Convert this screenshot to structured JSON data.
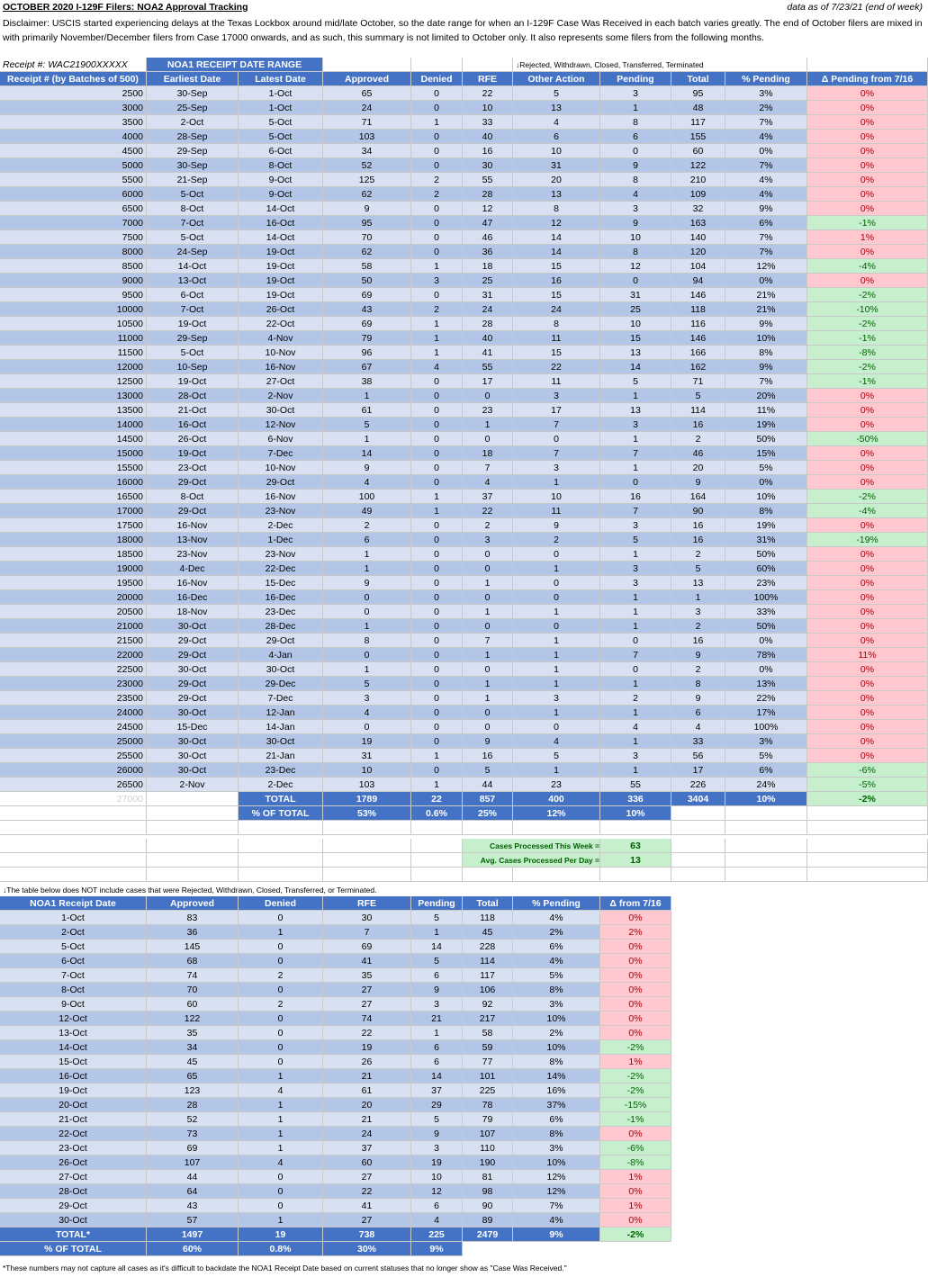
{
  "title": "OCTOBER 2020 I-129F Filers: NOA2 Approval Tracking",
  "data_as_of": "data as of 7/23/21 (end of week)",
  "disclaimer": "Disclaimer: USCIS started experiencing delays at the Texas Lockbox around mid/late October, so the date range for when an I-129F Case Was Received in each batch varies greatly. The end of October filers are mixed in with primarily November/December filers from Case 17000 onwards, and as such, this summary is not limited to October only. It also represents some filers from the following months.",
  "receipt_label": "Receipt #: WAC21900XXXXX",
  "noa1_range_label": "NOA1 RECEIPT DATE RANGE",
  "rejected_note": "↓Rejected, Withdrawn, Closed, Transferred, Terminated",
  "table1": {
    "headers": [
      "Receipt # (by Batches of 500)",
      "Earliest Date",
      "Latest Date",
      "Approved",
      "Denied",
      "RFE",
      "Other Action",
      "Pending",
      "Total",
      "% Pending",
      "Δ Pending from 7/16"
    ],
    "rows": [
      [
        "2500",
        "30-Sep",
        "1-Oct",
        "65",
        "0",
        "22",
        "5",
        "3",
        "95",
        "3%",
        "0%"
      ],
      [
        "3000",
        "25-Sep",
        "1-Oct",
        "24",
        "0",
        "10",
        "13",
        "1",
        "48",
        "2%",
        "0%"
      ],
      [
        "3500",
        "2-Oct",
        "5-Oct",
        "71",
        "1",
        "33",
        "4",
        "8",
        "117",
        "7%",
        "0%"
      ],
      [
        "4000",
        "28-Sep",
        "5-Oct",
        "103",
        "0",
        "40",
        "6",
        "6",
        "155",
        "4%",
        "0%"
      ],
      [
        "4500",
        "29-Sep",
        "6-Oct",
        "34",
        "0",
        "16",
        "10",
        "0",
        "60",
        "0%",
        "0%"
      ],
      [
        "5000",
        "30-Sep",
        "8-Oct",
        "52",
        "0",
        "30",
        "31",
        "9",
        "122",
        "7%",
        "0%"
      ],
      [
        "5500",
        "21-Sep",
        "9-Oct",
        "125",
        "2",
        "55",
        "20",
        "8",
        "210",
        "4%",
        "0%"
      ],
      [
        "6000",
        "5-Oct",
        "9-Oct",
        "62",
        "2",
        "28",
        "13",
        "4",
        "109",
        "4%",
        "0%"
      ],
      [
        "6500",
        "8-Oct",
        "14-Oct",
        "9",
        "0",
        "12",
        "8",
        "3",
        "32",
        "9%",
        "0%"
      ],
      [
        "7000",
        "7-Oct",
        "16-Oct",
        "95",
        "0",
        "47",
        "12",
        "9",
        "163",
        "6%",
        "-1%"
      ],
      [
        "7500",
        "5-Oct",
        "14-Oct",
        "70",
        "0",
        "46",
        "14",
        "10",
        "140",
        "7%",
        "1%"
      ],
      [
        "8000",
        "24-Sep",
        "19-Oct",
        "62",
        "0",
        "36",
        "14",
        "8",
        "120",
        "7%",
        "0%"
      ],
      [
        "8500",
        "14-Oct",
        "19-Oct",
        "58",
        "1",
        "18",
        "15",
        "12",
        "104",
        "12%",
        "-4%"
      ],
      [
        "9000",
        "13-Oct",
        "19-Oct",
        "50",
        "3",
        "25",
        "16",
        "0",
        "94",
        "0%",
        "0%"
      ],
      [
        "9500",
        "6-Oct",
        "19-Oct",
        "69",
        "0",
        "31",
        "15",
        "31",
        "146",
        "21%",
        "-2%"
      ],
      [
        "10000",
        "7-Oct",
        "26-Oct",
        "43",
        "2",
        "24",
        "24",
        "25",
        "118",
        "21%",
        "-10%"
      ],
      [
        "10500",
        "19-Oct",
        "22-Oct",
        "69",
        "1",
        "28",
        "8",
        "10",
        "116",
        "9%",
        "-2%"
      ],
      [
        "11000",
        "29-Sep",
        "4-Nov",
        "79",
        "1",
        "40",
        "11",
        "15",
        "146",
        "10%",
        "-1%"
      ],
      [
        "11500",
        "5-Oct",
        "10-Nov",
        "96",
        "1",
        "41",
        "15",
        "13",
        "166",
        "8%",
        "-8%"
      ],
      [
        "12000",
        "10-Sep",
        "16-Nov",
        "67",
        "4",
        "55",
        "22",
        "14",
        "162",
        "9%",
        "-2%"
      ],
      [
        "12500",
        "19-Oct",
        "27-Oct",
        "38",
        "0",
        "17",
        "11",
        "5",
        "71",
        "7%",
        "-1%"
      ],
      [
        "13000",
        "28-Oct",
        "2-Nov",
        "1",
        "0",
        "0",
        "3",
        "1",
        "5",
        "20%",
        "0%"
      ],
      [
        "13500",
        "21-Oct",
        "30-Oct",
        "61",
        "0",
        "23",
        "17",
        "13",
        "114",
        "11%",
        "0%"
      ],
      [
        "14000",
        "16-Oct",
        "12-Nov",
        "5",
        "0",
        "1",
        "7",
        "3",
        "16",
        "19%",
        "0%"
      ],
      [
        "14500",
        "26-Oct",
        "6-Nov",
        "1",
        "0",
        "0",
        "0",
        "1",
        "2",
        "50%",
        "-50%"
      ],
      [
        "15000",
        "19-Oct",
        "7-Dec",
        "14",
        "0",
        "18",
        "7",
        "7",
        "46",
        "15%",
        "0%"
      ],
      [
        "15500",
        "23-Oct",
        "10-Nov",
        "9",
        "0",
        "7",
        "3",
        "1",
        "20",
        "5%",
        "0%"
      ],
      [
        "16000",
        "29-Oct",
        "29-Oct",
        "4",
        "0",
        "4",
        "1",
        "0",
        "9",
        "0%",
        "0%"
      ],
      [
        "16500",
        "8-Oct",
        "16-Nov",
        "100",
        "1",
        "37",
        "10",
        "16",
        "164",
        "10%",
        "-2%"
      ],
      [
        "17000",
        "29-Oct",
        "23-Nov",
        "49",
        "1",
        "22",
        "11",
        "7",
        "90",
        "8%",
        "-4%"
      ],
      [
        "17500",
        "16-Nov",
        "2-Dec",
        "2",
        "0",
        "2",
        "9",
        "3",
        "16",
        "19%",
        "0%"
      ],
      [
        "18000",
        "13-Nov",
        "1-Dec",
        "6",
        "0",
        "3",
        "2",
        "5",
        "16",
        "31%",
        "-19%"
      ],
      [
        "18500",
        "23-Nov",
        "23-Nov",
        "1",
        "0",
        "0",
        "0",
        "1",
        "2",
        "50%",
        "0%"
      ],
      [
        "19000",
        "4-Dec",
        "22-Dec",
        "1",
        "0",
        "0",
        "1",
        "3",
        "5",
        "60%",
        "0%"
      ],
      [
        "19500",
        "16-Nov",
        "15-Dec",
        "9",
        "0",
        "1",
        "0",
        "3",
        "13",
        "23%",
        "0%"
      ],
      [
        "20000",
        "16-Dec",
        "16-Dec",
        "0",
        "0",
        "0",
        "0",
        "1",
        "1",
        "100%",
        "0%"
      ],
      [
        "20500",
        "18-Nov",
        "23-Dec",
        "0",
        "0",
        "1",
        "1",
        "1",
        "3",
        "33%",
        "0%"
      ],
      [
        "21000",
        "30-Oct",
        "28-Dec",
        "1",
        "0",
        "0",
        "0",
        "1",
        "2",
        "50%",
        "0%"
      ],
      [
        "21500",
        "29-Oct",
        "29-Oct",
        "8",
        "0",
        "7",
        "1",
        "0",
        "16",
        "0%",
        "0%"
      ],
      [
        "22000",
        "29-Oct",
        "4-Jan",
        "0",
        "0",
        "1",
        "1",
        "7",
        "9",
        "78%",
        "11%"
      ],
      [
        "22500",
        "30-Oct",
        "30-Oct",
        "1",
        "0",
        "0",
        "1",
        "0",
        "2",
        "0%",
        "0%"
      ],
      [
        "23000",
        "29-Oct",
        "29-Dec",
        "5",
        "0",
        "1",
        "1",
        "1",
        "8",
        "13%",
        "0%"
      ],
      [
        "23500",
        "29-Oct",
        "7-Dec",
        "3",
        "0",
        "1",
        "3",
        "2",
        "9",
        "22%",
        "0%"
      ],
      [
        "24000",
        "30-Oct",
        "12-Jan",
        "4",
        "0",
        "0",
        "1",
        "1",
        "6",
        "17%",
        "0%"
      ],
      [
        "24500",
        "15-Dec",
        "14-Jan",
        "0",
        "0",
        "0",
        "0",
        "4",
        "4",
        "100%",
        "0%"
      ],
      [
        "25000",
        "30-Oct",
        "30-Oct",
        "19",
        "0",
        "9",
        "4",
        "1",
        "33",
        "3%",
        "0%"
      ],
      [
        "25500",
        "30-Oct",
        "21-Jan",
        "31",
        "1",
        "16",
        "5",
        "3",
        "56",
        "5%",
        "0%"
      ],
      [
        "26000",
        "30-Oct",
        "23-Dec",
        "10",
        "0",
        "5",
        "1",
        "1",
        "17",
        "6%",
        "-6%"
      ],
      [
        "26500",
        "2-Nov",
        "2-Dec",
        "103",
        "1",
        "44",
        "23",
        "55",
        "226",
        "24%",
        "-5%"
      ]
    ],
    "ghost_receipt": "27000",
    "total_row": [
      "TOTAL",
      "1789",
      "22",
      "857",
      "400",
      "336",
      "3404",
      "10%",
      "-2%"
    ],
    "pct_row": [
      "% OF TOTAL",
      "53%",
      "0.6%",
      "25%",
      "12%",
      "10%"
    ]
  },
  "weekly": {
    "processed_label": "Cases Processed This Week =",
    "processed_value": "63",
    "avg_label": "Avg. Cases Processed Per Day =",
    "avg_value": "13"
  },
  "table2_note": "↓The table below does NOT include cases that were Rejected, Withdrawn, Closed, Transferred, or Terminated.",
  "table2": {
    "headers": [
      "NOA1 Receipt Date",
      "Approved",
      "Denied",
      "RFE",
      "Pending",
      "Total",
      "% Pending",
      "Δ from 7/16"
    ],
    "rows": [
      [
        "1-Oct",
        "83",
        "0",
        "30",
        "5",
        "118",
        "4%",
        "0%"
      ],
      [
        "2-Oct",
        "36",
        "1",
        "7",
        "1",
        "45",
        "2%",
        "2%"
      ],
      [
        "5-Oct",
        "145",
        "0",
        "69",
        "14",
        "228",
        "6%",
        "0%"
      ],
      [
        "6-Oct",
        "68",
        "0",
        "41",
        "5",
        "114",
        "4%",
        "0%"
      ],
      [
        "7-Oct",
        "74",
        "2",
        "35",
        "6",
        "117",
        "5%",
        "0%"
      ],
      [
        "8-Oct",
        "70",
        "0",
        "27",
        "9",
        "106",
        "8%",
        "0%"
      ],
      [
        "9-Oct",
        "60",
        "2",
        "27",
        "3",
        "92",
        "3%",
        "0%"
      ],
      [
        "12-Oct",
        "122",
        "0",
        "74",
        "21",
        "217",
        "10%",
        "0%"
      ],
      [
        "13-Oct",
        "35",
        "0",
        "22",
        "1",
        "58",
        "2%",
        "0%"
      ],
      [
        "14-Oct",
        "34",
        "0",
        "19",
        "6",
        "59",
        "10%",
        "-2%"
      ],
      [
        "15-Oct",
        "45",
        "0",
        "26",
        "6",
        "77",
        "8%",
        "1%"
      ],
      [
        "16-Oct",
        "65",
        "1",
        "21",
        "14",
        "101",
        "14%",
        "-2%"
      ],
      [
        "19-Oct",
        "123",
        "4",
        "61",
        "37",
        "225",
        "16%",
        "-2%"
      ],
      [
        "20-Oct",
        "28",
        "1",
        "20",
        "29",
        "78",
        "37%",
        "-15%"
      ],
      [
        "21-Oct",
        "52",
        "1",
        "21",
        "5",
        "79",
        "6%",
        "-1%"
      ],
      [
        "22-Oct",
        "73",
        "1",
        "24",
        "9",
        "107",
        "8%",
        "0%"
      ],
      [
        "23-Oct",
        "69",
        "1",
        "37",
        "3",
        "110",
        "3%",
        "-6%"
      ],
      [
        "26-Oct",
        "107",
        "4",
        "60",
        "19",
        "190",
        "10%",
        "-8%"
      ],
      [
        "27-Oct",
        "44",
        "0",
        "27",
        "10",
        "81",
        "12%",
        "1%"
      ],
      [
        "28-Oct",
        "64",
        "0",
        "22",
        "12",
        "98",
        "12%",
        "0%"
      ],
      [
        "29-Oct",
        "43",
        "0",
        "41",
        "6",
        "90",
        "7%",
        "1%"
      ],
      [
        "30-Oct",
        "57",
        "1",
        "27",
        "4",
        "89",
        "4%",
        "0%"
      ]
    ],
    "total_row": [
      "TOTAL*",
      "1497",
      "19",
      "738",
      "225",
      "2479",
      "9%",
      "-2%"
    ],
    "pct_row": [
      "% OF TOTAL",
      "60%",
      "0.8%",
      "30%",
      "9%"
    ]
  },
  "footnote": "*These numbers may not capture all cases as it's difficult to backdate the NOA1 Receipt Date based on current statuses that no longer show as \"Case Was Received.\"",
  "colors": {
    "header_blue": "#4472c4",
    "row_light": "#d8e1f1",
    "row_dark": "#b4c6e7",
    "pink_bg": "#ffc7ce",
    "pink_text": "#9c0006",
    "green_bg": "#c6efce",
    "green_text": "#006100"
  }
}
